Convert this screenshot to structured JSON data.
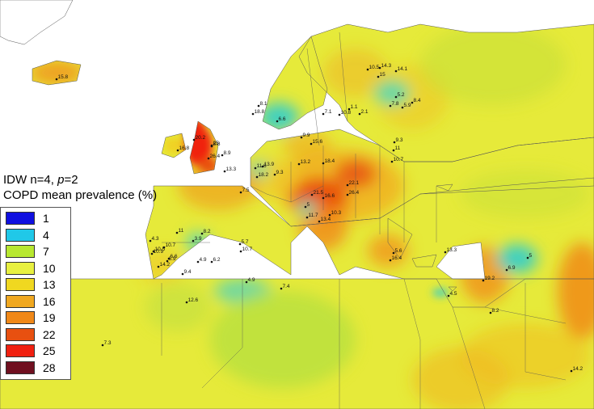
{
  "legend": {
    "title_line1_prefix": "IDW n=4, ",
    "title_line1_p": "p",
    "title_line1_suffix": "=2",
    "title_line2": "COPD mean prevalence (%)",
    "items": [
      {
        "value": "1",
        "color": "#1010e0"
      },
      {
        "value": "4",
        "color": "#20c8e8"
      },
      {
        "value": "7",
        "color": "#b8e830"
      },
      {
        "value": "10",
        "color": "#e8f040"
      },
      {
        "value": "13",
        "color": "#f0d820"
      },
      {
        "value": "16",
        "color": "#f0a820"
      },
      {
        "value": "19",
        "color": "#f08818"
      },
      {
        "value": "22",
        "color": "#e85010"
      },
      {
        "value": "25",
        "color": "#f02010"
      },
      {
        "value": "28",
        "color": "#701020"
      }
    ]
  },
  "map": {
    "sea_color": "#ffffff",
    "base_land_color": "#e8e838",
    "points": [
      {
        "label": "10.5"
      },
      {
        "label": "14.3"
      },
      {
        "label": "14.1"
      },
      {
        "label": "15"
      },
      {
        "label": "5.2"
      },
      {
        "label": "7.8"
      },
      {
        "label": "8.4"
      },
      {
        "label": "5.9"
      },
      {
        "label": "8.1"
      },
      {
        "label": "18.8"
      },
      {
        "label": "6.6"
      },
      {
        "label": "7.1"
      },
      {
        "label": "10.8"
      },
      {
        "label": "1.1"
      },
      {
        "label": "2.1"
      },
      {
        "label": "16.8"
      },
      {
        "label": "20.2"
      },
      {
        "label": "25"
      },
      {
        "label": "8.8"
      },
      {
        "label": "26.4"
      },
      {
        "label": "8.9"
      },
      {
        "label": "13.3"
      },
      {
        "label": "9.9"
      },
      {
        "label": "15.6"
      },
      {
        "label": "11.6"
      },
      {
        "label": "13.9"
      },
      {
        "label": "18.2"
      },
      {
        "label": "9.3"
      },
      {
        "label": "13.2"
      },
      {
        "label": "18.4"
      },
      {
        "label": "9.3"
      },
      {
        "label": "10.7"
      },
      {
        "label": "11"
      },
      {
        "label": "22.1"
      },
      {
        "label": "7.5"
      },
      {
        "label": "21.5"
      },
      {
        "label": "16.6"
      },
      {
        "label": "26.4"
      },
      {
        "label": "5"
      },
      {
        "label": "11.7"
      },
      {
        "label": "13.4"
      },
      {
        "label": "10.3"
      },
      {
        "label": "11"
      },
      {
        "label": "8.2"
      },
      {
        "label": "3.9"
      },
      {
        "label": "5.7"
      },
      {
        "label": "4.3"
      },
      {
        "label": "10.7"
      },
      {
        "label": "10.9"
      },
      {
        "label": "10.5"
      },
      {
        "label": "6.6"
      },
      {
        "label": "4.9"
      },
      {
        "label": "14.2"
      },
      {
        "label": "6.9"
      },
      {
        "label": "9.4"
      },
      {
        "label": "6.2"
      },
      {
        "label": "10.7"
      },
      {
        "label": "5.6"
      },
      {
        "label": "16.4"
      },
      {
        "label": "13.3"
      },
      {
        "label": "5"
      },
      {
        "label": "6.9"
      },
      {
        "label": "19.2"
      },
      {
        "label": "4.9"
      },
      {
        "label": "7.4"
      },
      {
        "label": "12.6"
      },
      {
        "label": "4.5"
      },
      {
        "label": "8.2"
      },
      {
        "label": "7.3"
      },
      {
        "label": "14.2"
      },
      {
        "label": "15.8"
      }
    ]
  }
}
